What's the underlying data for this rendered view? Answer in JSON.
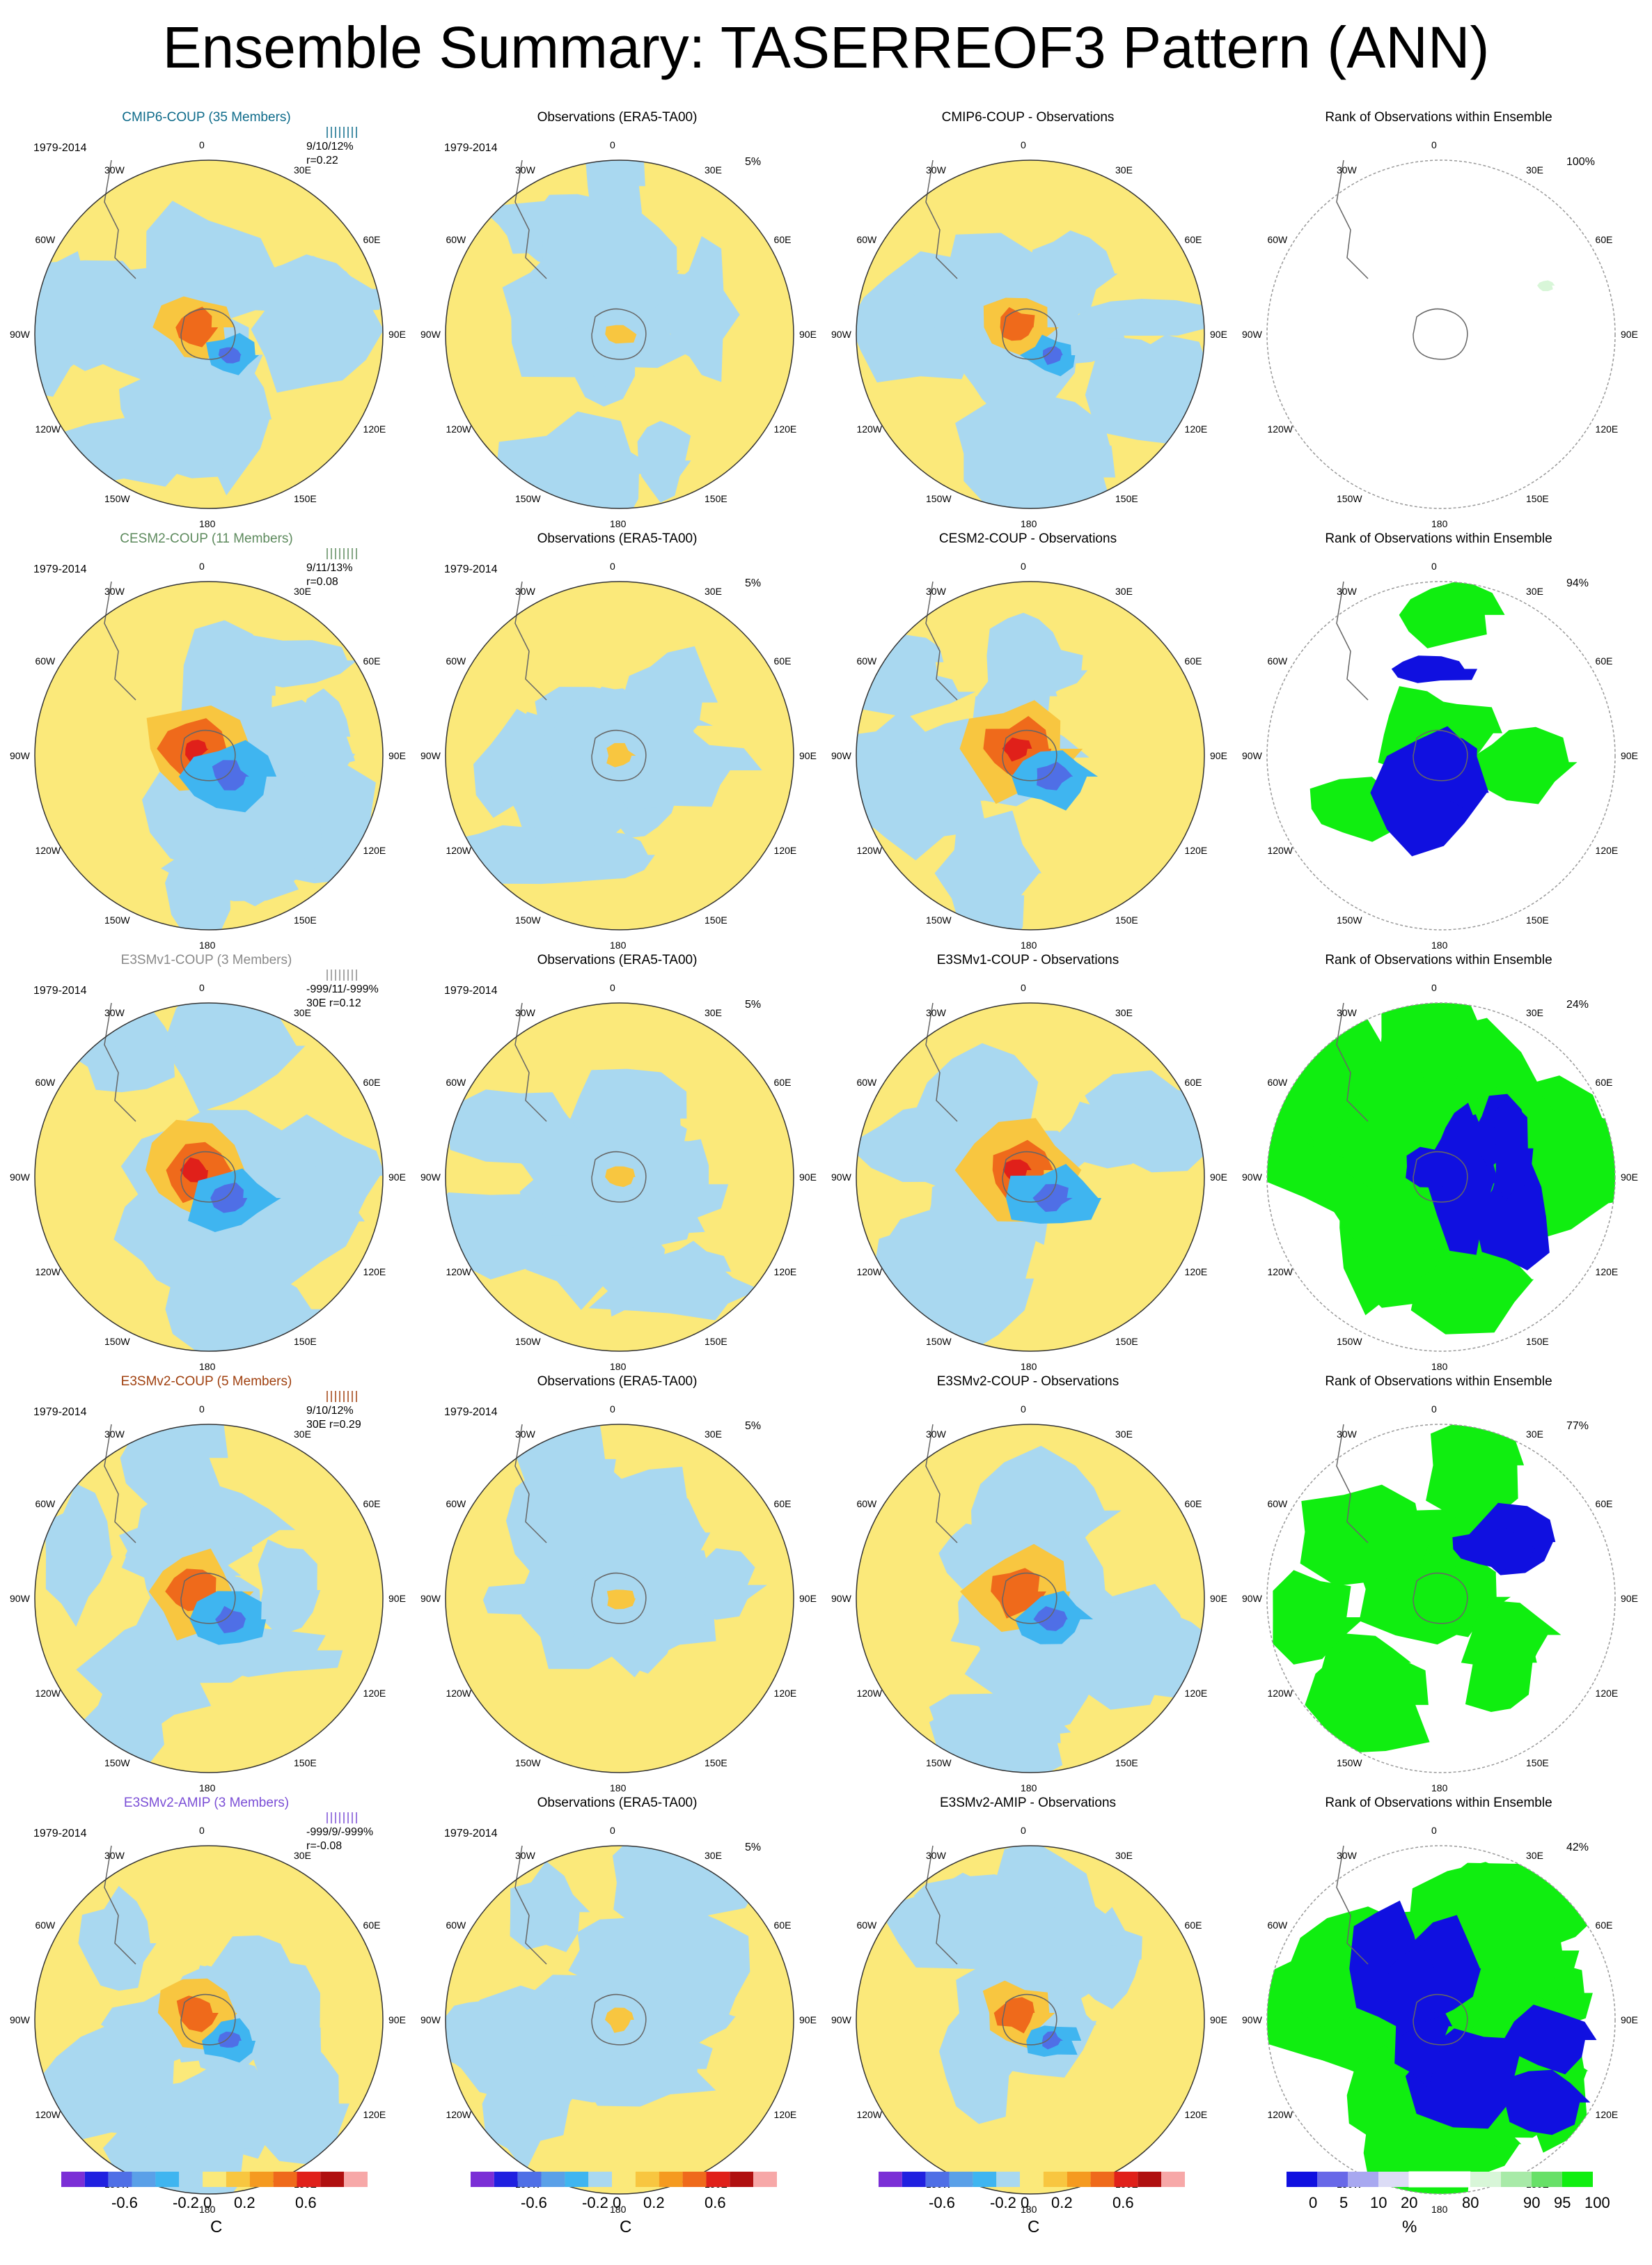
{
  "title": "Ensemble Summary: TASERREOF3 Pattern (ANN)",
  "period": "1979-2014",
  "longitude_labels": [
    "0",
    "30E",
    "60E",
    "90E",
    "120E",
    "150E",
    "180",
    "150W",
    "120W",
    "90W",
    "60W",
    "30W"
  ],
  "colors": {
    "model_cmip6": "#0e6b8a",
    "model_cesm2": "#5d8a5d",
    "model_e3smv1": "#8a8a8a",
    "model_e3smv2": "#a0400f",
    "model_e3smv2_amip": "#7b4fd6"
  },
  "rows": [
    {
      "model": "CMIP6-COUP (35 Members)",
      "diff_title": "CMIP6-COUP - Observations",
      "stats": "9/10/12%",
      "corr": "r=0.22",
      "obs_pct": "5%",
      "rank_pct": "100%",
      "rank_cover": 0.02,
      "rank_blue": 0.0
    },
    {
      "model": "CESM2-COUP (11 Members)",
      "diff_title": "CESM2-COUP - Observations",
      "stats": "9/11/13%",
      "corr": "r=0.08",
      "obs_pct": "5%",
      "rank_pct": "94%",
      "rank_cover": 0.25,
      "rank_blue": 0.15
    },
    {
      "model": "E3SMv1-COUP (3 Members)",
      "diff_title": "E3SMv1-COUP - Observations",
      "stats": "-999/11/-999%",
      "corr": "30E r=0.12",
      "obs_pct": "5%",
      "rank_pct": "24%",
      "rank_cover": 0.95,
      "rank_blue": 0.35
    },
    {
      "model": "E3SMv2-COUP (5 Members)",
      "diff_title": "E3SMv2-COUP - Observations",
      "stats": "9/10/12%",
      "corr": "30E r=0.29",
      "obs_pct": "5%",
      "rank_pct": "77%",
      "rank_cover": 0.55,
      "rank_blue": 0.1
    },
    {
      "model": "E3SMv2-AMIP (3 Members)",
      "diff_title": "E3SMv2-AMIP - Observations",
      "stats": "-999/9/-999%",
      "corr": "r=-0.08",
      "obs_pct": "5%",
      "rank_pct": "42%",
      "rank_cover": 0.9,
      "rank_blue": 0.4
    }
  ],
  "obs_title": "Observations (ERA5-TA00)",
  "rank_title": "Rank of Observations within Ensemble",
  "colorbar_temp": {
    "colors": [
      "#7b2fd6",
      "#2020e0",
      "#4f6fe6",
      "#5aa0e8",
      "#3fb5f0",
      "#a9d8f0",
      "#fbe97a",
      "#f8c640",
      "#f59a20",
      "#ef6a1b",
      "#e0201a",
      "#b01010",
      "#f7a8a8"
    ],
    "tick_labels": [
      "-0.6",
      "-0.2",
      "0",
      "0.2",
      "0.6"
    ],
    "tick_values": [
      -0.6,
      -0.2,
      0.0,
      0.2,
      0.6
    ],
    "range": [
      -1.0,
      1.0
    ],
    "unit": "C"
  },
  "colorbar_rank": {
    "colors": [
      "#1010e0",
      "#6868e8",
      "#a8a8f0",
      "#dcdcf6",
      "#ffffff",
      "#ffffff",
      "#d8f6d8",
      "#a8eaa8",
      "#68e068",
      "#10ee10"
    ],
    "tick_labels": [
      "0",
      "5",
      "10",
      "20",
      "80",
      "90",
      "95",
      "100"
    ],
    "tick_values": [
      0,
      5,
      10,
      20,
      80,
      90,
      95,
      100
    ],
    "unit": "%"
  }
}
